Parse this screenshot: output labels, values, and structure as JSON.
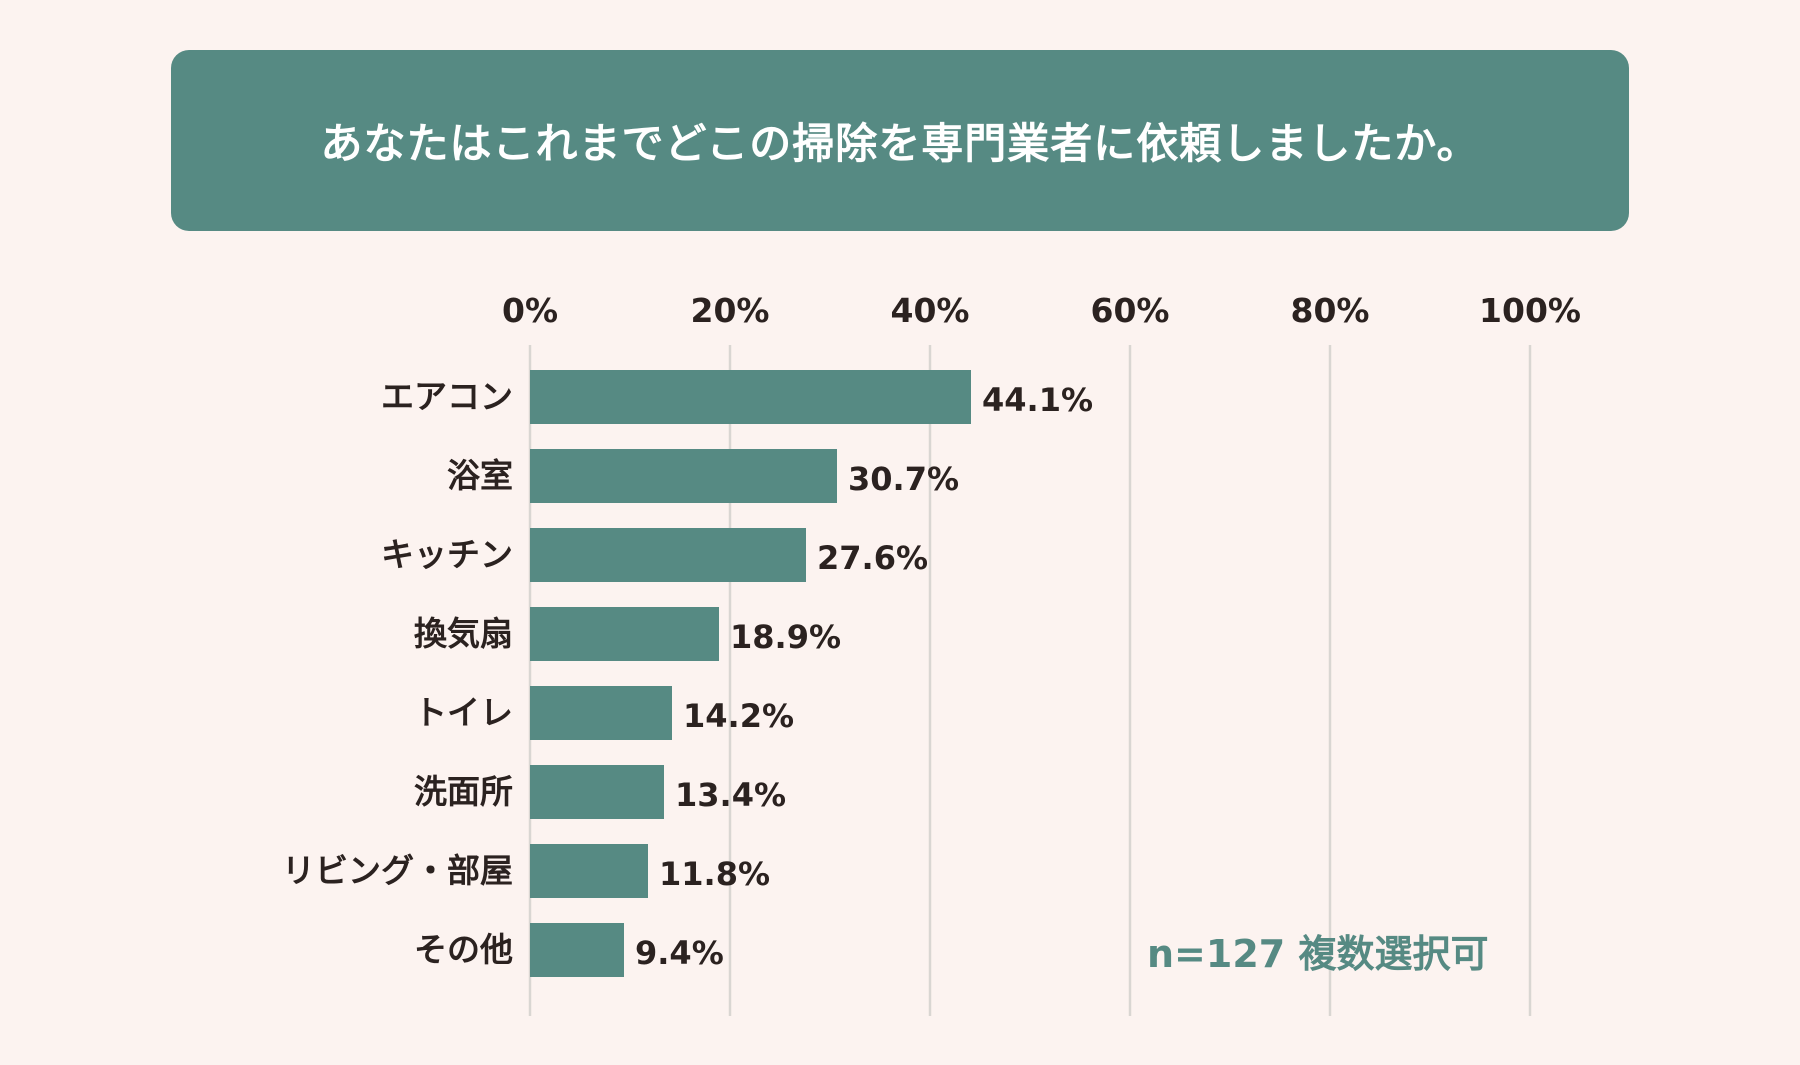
{
  "chart_data": {
    "type": "bar",
    "orientation": "horizontal",
    "title": "あなたはこれまでどこの掃除を専門業者に依頼しましたか。",
    "categories": [
      "エアコン",
      "浴室",
      "キッチン",
      "換気扇",
      "トイレ",
      "洗面所",
      "リビング・部屋",
      "その他"
    ],
    "values": [
      44.1,
      30.7,
      27.6,
      18.9,
      14.2,
      13.4,
      11.8,
      9.4
    ],
    "value_labels": [
      "44.1%",
      "30.7%",
      "27.6%",
      "18.9%",
      "14.2%",
      "13.4%",
      "11.8%",
      "9.4%"
    ],
    "xlim": [
      0,
      100
    ],
    "xticks": [
      0,
      20,
      40,
      60,
      80,
      100
    ],
    "xtick_labels": [
      "0%",
      "20%",
      "40%",
      "60%",
      "80%",
      "100%"
    ],
    "grid": true,
    "note": "n=127 複数選択可",
    "colors": {
      "bar": "#568a83",
      "background": "#fcf3f0",
      "grid": "#d9d6d2",
      "text": "#2b2220"
    }
  }
}
